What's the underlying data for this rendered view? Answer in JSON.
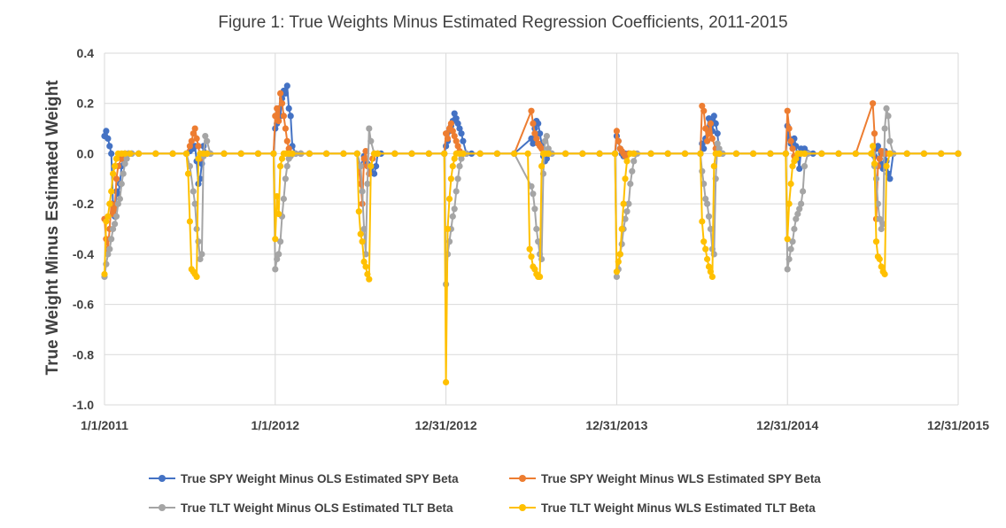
{
  "chart_data": {
    "type": "line",
    "title": "Figure 1: True Weights Minus Estimated Regression Coefficients, 2011-2015",
    "xlabel": "",
    "ylabel": "True Weight Minus Estimated Weight",
    "xlim": [
      0,
      5
    ],
    "ylim": [
      -1.0,
      0.4
    ],
    "yticks": [
      0.4,
      0.2,
      0.0,
      -0.2,
      -0.4,
      -0.6,
      -0.8,
      -1.0
    ],
    "ytick_labels": [
      "0.4",
      "0.2",
      "0.0",
      "-0.2",
      "-0.4",
      "-0.6",
      "-0.8",
      "-1.0"
    ],
    "xticks": [
      0,
      1,
      2,
      3,
      4,
      5
    ],
    "xtick_labels": [
      "1/1/2011",
      "1/1/2012",
      "12/31/2012",
      "12/31/2013",
      "12/31/2014",
      "12/31/2015"
    ],
    "grid": true,
    "legend_position": "bottom",
    "series": [
      {
        "name": "True SPY Weight Minus OLS Estimated SPY Beta",
        "color": "#4472C4",
        "x": [
          0.0,
          0.01,
          0.02,
          0.03,
          0.04,
          0.05,
          0.06,
          0.07,
          0.08,
          0.09,
          0.1,
          0.11,
          0.12,
          0.14,
          0.16,
          0.2,
          0.3,
          0.4,
          0.48,
          0.5,
          0.52,
          0.53,
          0.54,
          0.55,
          0.56,
          0.57,
          0.58,
          0.6,
          0.62,
          0.7,
          0.8,
          0.9,
          0.99,
          1.0,
          1.01,
          1.02,
          1.03,
          1.04,
          1.05,
          1.06,
          1.07,
          1.08,
          1.09,
          1.1,
          1.12,
          1.15,
          1.2,
          1.3,
          1.4,
          1.48,
          1.5,
          1.52,
          1.54,
          1.56,
          1.58,
          1.59,
          1.6,
          1.62,
          1.7,
          1.8,
          1.9,
          1.99,
          2.0,
          2.01,
          2.02,
          2.03,
          2.04,
          2.05,
          2.06,
          2.07,
          2.08,
          2.09,
          2.1,
          2.12,
          2.15,
          2.2,
          2.3,
          2.4,
          2.5,
          2.51,
          2.52,
          2.53,
          2.54,
          2.55,
          2.56,
          2.57,
          2.58,
          2.59,
          2.6,
          2.62,
          2.7,
          2.8,
          2.9,
          2.99,
          3.0,
          3.01,
          3.02,
          3.03,
          3.04,
          3.05,
          3.07,
          3.1,
          3.2,
          3.3,
          3.4,
          3.49,
          3.5,
          3.51,
          3.52,
          3.53,
          3.54,
          3.55,
          3.56,
          3.57,
          3.58,
          3.59,
          3.6,
          3.62,
          3.7,
          3.8,
          3.9,
          3.99,
          4.0,
          4.01,
          4.02,
          4.03,
          4.04,
          4.05,
          4.06,
          4.07,
          4.08,
          4.1,
          4.15,
          4.2,
          4.3,
          4.4,
          4.5,
          4.51,
          4.52,
          4.53,
          4.54,
          4.55,
          4.56,
          4.57,
          4.58,
          4.59,
          4.6,
          4.62,
          4.7,
          4.8,
          4.9,
          5.0
        ],
        "y": [
          0.07,
          0.09,
          0.06,
          0.03,
          0.0,
          -0.2,
          -0.25,
          -0.15,
          -0.16,
          -0.12,
          -0.05,
          -0.02,
          0.0,
          0.0,
          0.0,
          0.0,
          0.0,
          0.0,
          0.0,
          0.01,
          0.02,
          0.03,
          -0.03,
          -0.12,
          -0.1,
          -0.04,
          0.03,
          0.0,
          0.0,
          0.0,
          0.0,
          0.0,
          0.0,
          0.1,
          0.12,
          0.18,
          0.15,
          0.22,
          0.25,
          0.24,
          0.27,
          0.18,
          0.15,
          0.03,
          0.0,
          0.0,
          0.0,
          0.0,
          0.0,
          0.0,
          -0.05,
          -0.01,
          -0.04,
          -0.06,
          -0.08,
          -0.05,
          0.0,
          0.0,
          0.0,
          0.0,
          0.0,
          0.0,
          0.03,
          0.05,
          0.09,
          0.11,
          0.13,
          0.16,
          0.14,
          0.12,
          0.1,
          0.08,
          0.05,
          0.0,
          0.0,
          0.0,
          0.0,
          0.0,
          0.06,
          0.04,
          0.1,
          0.13,
          0.12,
          0.08,
          0.04,
          -0.01,
          -0.03,
          -0.02,
          0.0,
          0.0,
          0.0,
          0.0,
          0.0,
          0.0,
          0.07,
          0.05,
          0.02,
          0.0,
          -0.01,
          0.0,
          0.0,
          0.0,
          0.0,
          0.0,
          0.0,
          0.0,
          0.04,
          0.02,
          0.06,
          0.1,
          0.14,
          0.13,
          0.09,
          0.15,
          0.12,
          0.08,
          0.0,
          0.0,
          0.0,
          0.0,
          0.0,
          0.0,
          0.11,
          0.06,
          0.04,
          0.05,
          0.06,
          0.03,
          -0.02,
          -0.06,
          0.02,
          0.02,
          0.0,
          0.0,
          0.0,
          0.0,
          0.0,
          -0.01,
          0.02,
          0.03,
          -0.02,
          -0.04,
          -0.06,
          0.01,
          -0.03,
          -0.08,
          -0.1,
          0.0,
          0.0,
          0.0,
          0.0,
          0.0
        ]
      },
      {
        "name": "True SPY Weight Minus WLS Estimated SPY Beta",
        "color": "#ED7D31",
        "x": [
          0.0,
          0.01,
          0.02,
          0.03,
          0.04,
          0.05,
          0.06,
          0.07,
          0.08,
          0.1,
          0.12,
          0.14,
          0.2,
          0.3,
          0.4,
          0.48,
          0.5,
          0.51,
          0.52,
          0.53,
          0.54,
          0.55,
          0.56,
          0.58,
          0.6,
          0.7,
          0.8,
          0.9,
          0.99,
          1.0,
          1.01,
          1.02,
          1.03,
          1.04,
          1.05,
          1.06,
          1.07,
          1.08,
          1.1,
          1.15,
          1.2,
          1.3,
          1.4,
          1.48,
          1.5,
          1.51,
          1.52,
          1.53,
          1.54,
          1.55,
          1.57,
          1.6,
          1.7,
          1.8,
          1.9,
          1.99,
          2.0,
          2.01,
          2.02,
          2.03,
          2.04,
          2.05,
          2.06,
          2.07,
          2.08,
          2.1,
          2.2,
          2.3,
          2.4,
          2.5,
          2.51,
          2.52,
          2.53,
          2.54,
          2.55,
          2.56,
          2.58,
          2.6,
          2.7,
          2.8,
          2.9,
          2.99,
          3.0,
          3.01,
          3.02,
          3.03,
          3.04,
          3.05,
          3.07,
          3.1,
          3.2,
          3.3,
          3.4,
          3.49,
          3.5,
          3.51,
          3.52,
          3.53,
          3.54,
          3.55,
          3.56,
          3.58,
          3.6,
          3.7,
          3.8,
          3.9,
          3.99,
          4.0,
          4.01,
          4.02,
          4.03,
          4.04,
          4.05,
          4.07,
          4.1,
          4.2,
          4.3,
          4.4,
          4.5,
          4.51,
          4.52,
          4.53,
          4.54,
          4.55,
          4.56,
          4.58,
          4.6,
          4.7,
          4.8,
          4.9,
          5.0
        ],
        "y": [
          -0.26,
          -0.34,
          -0.38,
          -0.3,
          -0.2,
          -0.24,
          -0.22,
          -0.1,
          -0.05,
          -0.02,
          0.0,
          0.0,
          0.0,
          0.0,
          0.0,
          0.0,
          0.03,
          0.05,
          0.08,
          0.1,
          0.06,
          0.03,
          -0.02,
          -0.01,
          0.0,
          0.0,
          0.0,
          0.0,
          0.0,
          0.15,
          0.18,
          0.13,
          0.24,
          0.2,
          0.15,
          0.1,
          0.05,
          0.02,
          0.0,
          0.0,
          0.0,
          0.0,
          0.0,
          0.0,
          -0.12,
          -0.2,
          -0.02,
          0.01,
          -0.05,
          -0.08,
          -0.02,
          0.0,
          0.0,
          0.0,
          0.0,
          0.0,
          0.08,
          0.06,
          0.1,
          0.12,
          0.09,
          0.07,
          0.05,
          0.03,
          0.01,
          0.0,
          0.0,
          0.0,
          0.0,
          0.17,
          0.12,
          0.08,
          0.06,
          0.04,
          0.03,
          0.02,
          0.0,
          0.0,
          0.0,
          0.0,
          0.0,
          0.0,
          0.09,
          0.05,
          0.02,
          0.01,
          0.0,
          -0.01,
          0.0,
          0.0,
          0.0,
          0.0,
          0.0,
          0.0,
          0.19,
          0.17,
          0.1,
          0.05,
          0.08,
          0.12,
          0.06,
          0.02,
          0.0,
          0.0,
          0.0,
          0.0,
          0.0,
          0.17,
          0.1,
          0.05,
          0.02,
          -0.01,
          -0.02,
          0.0,
          0.0,
          0.0,
          0.0,
          0.0,
          0.2,
          0.08,
          -0.26,
          -0.05,
          -0.02,
          0.01,
          0.0,
          0.0,
          0.0,
          0.0,
          0.0,
          0.0,
          0.0
        ]
      },
      {
        "name": "True TLT Weight Minus OLS Estimated TLT Beta",
        "color": "#A5A5A5",
        "x": [
          0.0,
          0.01,
          0.02,
          0.03,
          0.04,
          0.05,
          0.06,
          0.07,
          0.08,
          0.09,
          0.1,
          0.11,
          0.12,
          0.13,
          0.14,
          0.16,
          0.2,
          0.3,
          0.4,
          0.48,
          0.5,
          0.52,
          0.53,
          0.54,
          0.55,
          0.56,
          0.57,
          0.58,
          0.59,
          0.6,
          0.62,
          0.7,
          0.8,
          0.9,
          0.99,
          1.0,
          1.01,
          1.02,
          1.03,
          1.04,
          1.05,
          1.06,
          1.07,
          1.08,
          1.09,
          1.1,
          1.12,
          1.15,
          1.2,
          1.3,
          1.4,
          1.48,
          1.5,
          1.51,
          1.52,
          1.53,
          1.54,
          1.55,
          1.56,
          1.58,
          1.6,
          1.7,
          1.8,
          1.9,
          1.99,
          2.0,
          2.01,
          2.02,
          2.03,
          2.04,
          2.05,
          2.06,
          2.07,
          2.08,
          2.09,
          2.1,
          2.12,
          2.2,
          2.3,
          2.4,
          2.5,
          2.51,
          2.52,
          2.53,
          2.54,
          2.55,
          2.56,
          2.57,
          2.58,
          2.59,
          2.6,
          2.62,
          2.7,
          2.8,
          2.9,
          2.99,
          3.0,
          3.01,
          3.02,
          3.03,
          3.04,
          3.05,
          3.06,
          3.07,
          3.08,
          3.09,
          3.1,
          3.12,
          3.2,
          3.3,
          3.4,
          3.49,
          3.5,
          3.51,
          3.52,
          3.53,
          3.54,
          3.55,
          3.56,
          3.57,
          3.58,
          3.59,
          3.6,
          3.62,
          3.7,
          3.8,
          3.9,
          3.99,
          4.0,
          4.01,
          4.02,
          4.03,
          4.04,
          4.05,
          4.06,
          4.07,
          4.08,
          4.09,
          4.1,
          4.12,
          4.2,
          4.3,
          4.4,
          4.5,
          4.51,
          4.52,
          4.53,
          4.54,
          4.55,
          4.56,
          4.57,
          4.58,
          4.59,
          4.6,
          4.62,
          4.7,
          4.8,
          4.9,
          5.0
        ],
        "y": [
          -0.49,
          -0.44,
          -0.4,
          -0.38,
          -0.34,
          -0.3,
          -0.28,
          -0.25,
          -0.2,
          -0.18,
          -0.12,
          -0.08,
          -0.04,
          -0.02,
          0.0,
          0.0,
          0.0,
          0.0,
          0.0,
          0.0,
          -0.05,
          -0.15,
          -0.2,
          -0.3,
          -0.35,
          -0.42,
          -0.4,
          -0.01,
          0.07,
          0.05,
          0.0,
          0.0,
          0.0,
          0.0,
          0.0,
          -0.46,
          -0.42,
          -0.4,
          -0.35,
          -0.25,
          -0.18,
          -0.1,
          -0.05,
          -0.02,
          -0.01,
          0.0,
          0.0,
          0.0,
          0.0,
          0.0,
          0.0,
          0.0,
          -0.05,
          -0.15,
          -0.3,
          -0.4,
          -0.12,
          0.1,
          0.05,
          0.0,
          0.0,
          0.0,
          0.0,
          0.0,
          0.0,
          -0.52,
          -0.4,
          -0.35,
          -0.3,
          -0.25,
          -0.22,
          -0.15,
          -0.1,
          -0.05,
          -0.02,
          0.0,
          0.0,
          0.0,
          0.0,
          0.0,
          -0.13,
          -0.16,
          -0.22,
          -0.3,
          -0.35,
          -0.4,
          -0.42,
          -0.08,
          0.05,
          0.07,
          0.02,
          0.0,
          0.0,
          0.0,
          0.0,
          0.0,
          -0.49,
          -0.46,
          -0.4,
          -0.36,
          -0.3,
          -0.26,
          -0.23,
          -0.2,
          -0.12,
          -0.07,
          -0.03,
          0.0,
          0.0,
          0.0,
          0.0,
          0.0,
          -0.07,
          -0.12,
          -0.18,
          -0.2,
          -0.25,
          -0.3,
          -0.38,
          -0.4,
          -0.1,
          0.04,
          0.02,
          0.0,
          0.0,
          0.0,
          0.0,
          0.0,
          -0.46,
          -0.42,
          -0.38,
          -0.35,
          -0.3,
          -0.26,
          -0.24,
          -0.22,
          -0.2,
          -0.15,
          -0.05,
          0.0,
          0.0,
          0.0,
          0.0,
          0.0,
          -0.05,
          -0.1,
          -0.2,
          -0.26,
          -0.3,
          -0.28,
          0.1,
          0.18,
          0.15,
          0.05,
          0.0,
          0.0,
          0.0,
          0.0,
          0.0
        ]
      },
      {
        "name": "True TLT Weight Minus WLS Estimated TLT Beta",
        "color": "#FFC000",
        "x": [
          0.0,
          0.01,
          0.02,
          0.03,
          0.04,
          0.05,
          0.06,
          0.07,
          0.08,
          0.1,
          0.12,
          0.15,
          0.2,
          0.3,
          0.4,
          0.48,
          0.49,
          0.5,
          0.51,
          0.52,
          0.53,
          0.54,
          0.55,
          0.56,
          0.58,
          0.6,
          0.7,
          0.8,
          0.9,
          0.99,
          1.0,
          1.01,
          1.02,
          1.03,
          1.04,
          1.05,
          1.06,
          1.08,
          1.1,
          1.2,
          1.3,
          1.4,
          1.48,
          1.49,
          1.5,
          1.51,
          1.52,
          1.53,
          1.54,
          1.55,
          1.56,
          1.58,
          1.6,
          1.7,
          1.8,
          1.9,
          1.99,
          2.0,
          2.01,
          2.02,
          2.03,
          2.04,
          2.05,
          2.06,
          2.08,
          2.1,
          2.2,
          2.3,
          2.4,
          2.48,
          2.49,
          2.5,
          2.51,
          2.52,
          2.53,
          2.54,
          2.55,
          2.56,
          2.57,
          2.58,
          2.6,
          2.7,
          2.8,
          2.9,
          2.99,
          3.0,
          3.01,
          3.02,
          3.03,
          3.04,
          3.05,
          3.06,
          3.08,
          3.1,
          3.2,
          3.3,
          3.4,
          3.49,
          3.5,
          3.51,
          3.52,
          3.53,
          3.54,
          3.55,
          3.56,
          3.57,
          3.58,
          3.6,
          3.7,
          3.8,
          3.9,
          3.99,
          4.0,
          4.01,
          4.02,
          4.03,
          4.04,
          4.05,
          4.06,
          4.08,
          4.1,
          4.2,
          4.3,
          4.4,
          4.49,
          4.5,
          4.51,
          4.52,
          4.53,
          4.54,
          4.55,
          4.56,
          4.57,
          4.58,
          4.6,
          4.7,
          4.8,
          4.9,
          5.0
        ],
        "y": [
          -0.48,
          -0.27,
          -0.25,
          -0.2,
          -0.15,
          -0.08,
          -0.05,
          -0.02,
          0.0,
          0.0,
          0.0,
          0.0,
          0.0,
          0.0,
          0.0,
          0.0,
          -0.08,
          -0.27,
          -0.46,
          -0.47,
          -0.48,
          -0.49,
          -0.02,
          0.0,
          0.0,
          0.0,
          0.0,
          0.0,
          0.0,
          0.0,
          -0.34,
          -0.17,
          -0.24,
          -0.05,
          -0.02,
          0.0,
          0.0,
          0.0,
          0.0,
          0.0,
          0.0,
          0.0,
          0.0,
          -0.23,
          -0.32,
          -0.35,
          -0.43,
          -0.45,
          -0.48,
          -0.5,
          -0.05,
          0.0,
          0.0,
          0.0,
          0.0,
          0.0,
          0.0,
          -0.91,
          -0.3,
          -0.18,
          -0.1,
          -0.05,
          -0.02,
          0.0,
          0.0,
          0.0,
          0.0,
          0.0,
          0.0,
          0.0,
          -0.38,
          -0.41,
          -0.45,
          -0.46,
          -0.48,
          -0.49,
          -0.49,
          -0.05,
          0.0,
          0.0,
          0.0,
          0.0,
          0.0,
          0.0,
          0.0,
          -0.47,
          -0.43,
          -0.4,
          -0.3,
          -0.2,
          -0.1,
          -0.03,
          0.0,
          0.0,
          0.0,
          0.0,
          0.0,
          0.0,
          -0.27,
          -0.35,
          -0.38,
          -0.42,
          -0.45,
          -0.47,
          -0.49,
          -0.05,
          0.0,
          0.0,
          0.0,
          0.0,
          0.0,
          0.0,
          -0.34,
          -0.2,
          -0.12,
          -0.05,
          -0.03,
          -0.02,
          0.0,
          0.0,
          0.0,
          0.0,
          0.0,
          0.0,
          0.0,
          0.03,
          -0.04,
          -0.35,
          -0.41,
          -0.42,
          -0.45,
          -0.47,
          -0.48,
          -0.05,
          0.0,
          0.0,
          0.0,
          0.0,
          0.0
        ]
      }
    ]
  }
}
